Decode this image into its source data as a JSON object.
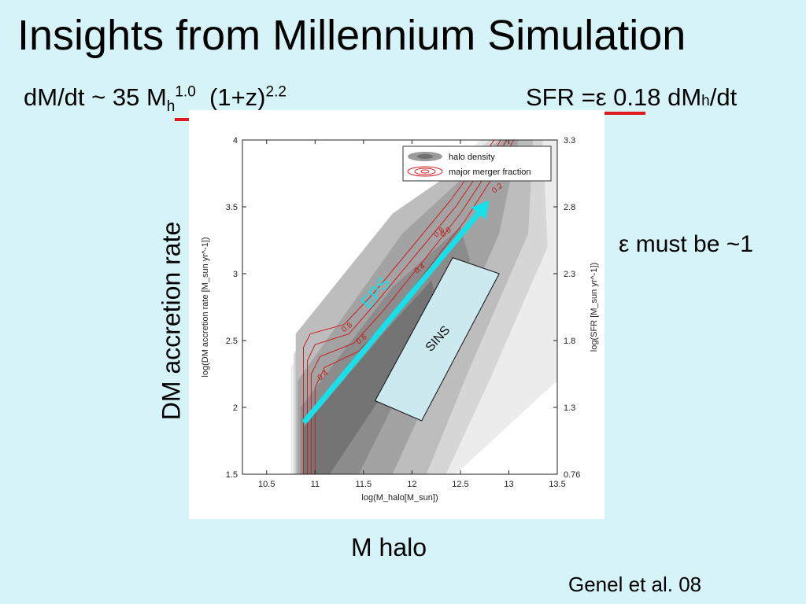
{
  "slide": {
    "title": "Insights from Millennium Simulation",
    "eq_left_a": "dM/dt ~ 35 M",
    "eq_left_sub": "h",
    "eq_left_sup": "1.0",
    "eq_left_b": "(1+z)",
    "eq_left_sup2": "2.2",
    "eq_right_a": "SFR =",
    "eq_right_eps": "ε",
    "eq_right_b": " 0.18 dM",
    "eq_right_sub": "h",
    "eq_right_c": "/dt",
    "epsilon_note": "ε must be ~1",
    "y_caption": "DM accretion rate",
    "x_caption": "M halo",
    "citation": "Genel et al. 08",
    "underline_color": "#e0191b"
  },
  "chart_data": {
    "type": "heatmap",
    "xlabel": "log(M_halo[M_sun])",
    "ylabel": "log(DM accretion rate [M_sun yr^-1])",
    "y2label": "log(SFR [M_sun yr^-1])",
    "xlim": [
      10.25,
      13.5
    ],
    "ylim": [
      1.5,
      4
    ],
    "x_ticks": [
      "10.5",
      "11",
      "11.5",
      "12",
      "12.5",
      "13",
      "13.5"
    ],
    "y_ticks": [
      "1.5",
      "2",
      "2.5",
      "3",
      "3.5",
      "4"
    ],
    "y2_ticks": [
      "0.76",
      "1.3",
      "1.8",
      "2.3",
      "2.8",
      "3.3"
    ],
    "legend": {
      "position": "top-right",
      "entries": [
        "halo density",
        "major merger fraction"
      ]
    },
    "contour_labels": [
      "0.8",
      "0.6",
      "0.4",
      "0.8",
      "0.6",
      "0.4",
      "0.2"
    ],
    "density_color": "#888888",
    "contour_color": "#cc1f1f",
    "annotations": {
      "eps": {
        "label": "EPS",
        "color": "#16e0ea",
        "from": [
          10.9,
          1.9
        ],
        "to": [
          12.8,
          3.55
        ]
      },
      "sins": {
        "label": "SINS",
        "fill": "#cbe9ee",
        "corners": [
          [
            11.62,
            2.05
          ],
          [
            12.1,
            1.9
          ],
          [
            12.9,
            3.0
          ],
          [
            12.42,
            3.12
          ]
        ]
      }
    }
  }
}
